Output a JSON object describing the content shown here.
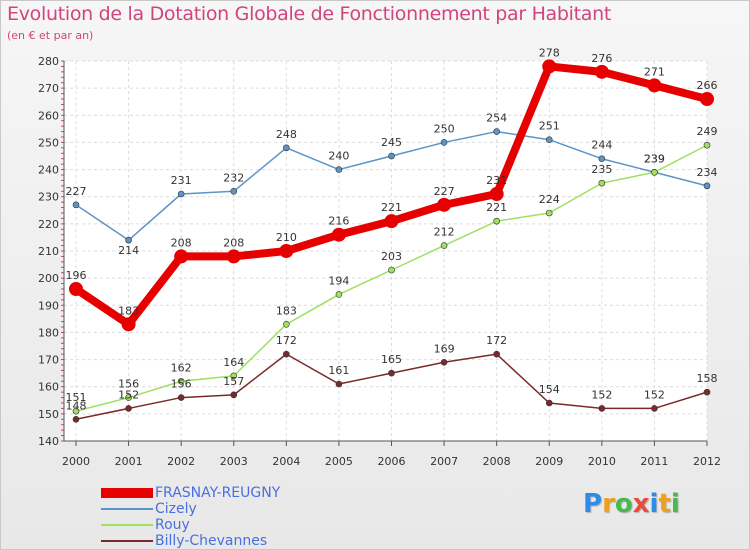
{
  "header": {
    "title": "Evolution de la Dotation Globale de Fonctionnement par Habitant",
    "subtitle": "(en € et par an)"
  },
  "logo": {
    "letters": [
      "P",
      "r",
      "o",
      "x",
      "i",
      "t",
      "i"
    ],
    "colors": [
      "#2e8be8",
      "#f0a020",
      "#49b84e",
      "#e84c3d",
      "#2e8be8",
      "#f0a020",
      "#49b84e"
    ]
  },
  "chart_data": {
    "type": "line",
    "title": "Evolution de la Dotation Globale de Fonctionnement par Habitant",
    "subtitle": "(en € et par an)",
    "xlabel": "",
    "ylabel": "",
    "x": [
      "2000",
      "2001",
      "2002",
      "2003",
      "2004",
      "2005",
      "2006",
      "2007",
      "2008",
      "2009",
      "2010",
      "2011",
      "2012"
    ],
    "ylim": [
      140,
      280
    ],
    "yticks": [
      140,
      150,
      160,
      170,
      180,
      190,
      200,
      210,
      220,
      230,
      240,
      250,
      260,
      270,
      280
    ],
    "grid": true,
    "legend_position": "bottom-left",
    "series": [
      {
        "name": "FRASNAY-REUGNY",
        "color": "#e60000",
        "emphasis": true,
        "values": [
          196,
          183,
          208,
          208,
          210,
          216,
          221,
          227,
          231,
          278,
          276,
          271,
          266
        ],
        "labels": [
          "196",
          "183",
          "208",
          "208",
          "210",
          "216",
          "221",
          "227",
          "231",
          "278",
          "276",
          "271",
          "266"
        ]
      },
      {
        "name": "Cizely",
        "color": "#5b94c8",
        "emphasis": false,
        "values": [
          227,
          214,
          231,
          232,
          248,
          240,
          245,
          250,
          254,
          251,
          244,
          239,
          234
        ],
        "labels": [
          "227",
          "214",
          "231",
          "232",
          "248",
          "240",
          "245",
          "250",
          "254",
          "251",
          "244",
          "239",
          "234"
        ]
      },
      {
        "name": "Rouy",
        "color": "#9ee060",
        "emphasis": false,
        "values": [
          151,
          156,
          162,
          164,
          183,
          194,
          203,
          212,
          221,
          224,
          235,
          239,
          249
        ],
        "labels": [
          "151",
          "156",
          "162",
          "164",
          "183",
          "194",
          "203",
          "212",
          "221",
          "224",
          "235",
          "239",
          "249"
        ]
      },
      {
        "name": "Billy-Chevannes",
        "color": "#7a2a2a",
        "emphasis": false,
        "values": [
          148,
          152,
          156,
          157,
          172,
          161,
          165,
          169,
          172,
          154,
          152,
          152,
          158
        ],
        "labels": [
          "148",
          "152",
          "156",
          "157",
          "172",
          "161",
          "165",
          "169",
          "172",
          "154",
          "152",
          "152",
          "158"
        ]
      }
    ]
  }
}
